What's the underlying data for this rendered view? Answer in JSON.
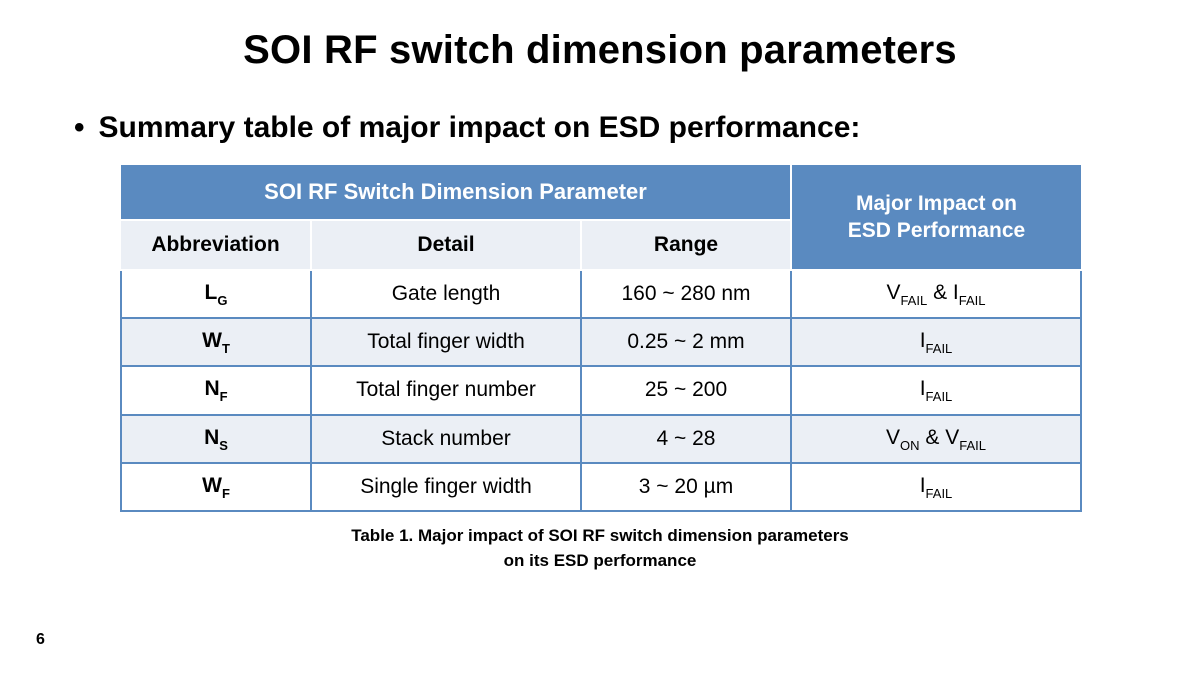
{
  "title": "SOI RF switch dimension parameters",
  "bullet_text": "Summary table of major impact on ESD performance:",
  "page_number": "6",
  "table": {
    "header_group_left": "SOI RF Switch Dimension Parameter",
    "header_group_right_l1": "Major Impact on",
    "header_group_right_l2": "ESD Performance",
    "subheaders": {
      "abbreviation": "Abbreviation",
      "detail": "Detail",
      "range": "Range"
    },
    "rows": [
      {
        "abbrev_base": "L",
        "abbrev_sub": "G",
        "detail": "Gate length",
        "range": "160 ~ 280 nm",
        "impact_parts": [
          {
            "base": "V",
            "sub": "FAIL"
          },
          {
            "sep": " & "
          },
          {
            "base": "I",
            "sub": "FAIL"
          }
        ]
      },
      {
        "abbrev_base": "W",
        "abbrev_sub": "T",
        "detail": "Total finger width",
        "range": "0.25 ~ 2 mm",
        "impact_parts": [
          {
            "base": "I",
            "sub": "FAIL"
          }
        ]
      },
      {
        "abbrev_base": "N",
        "abbrev_sub": "F",
        "detail": "Total finger number",
        "range": "25 ~ 200",
        "impact_parts": [
          {
            "base": "I",
            "sub": "FAIL"
          }
        ]
      },
      {
        "abbrev_base": "N",
        "abbrev_sub": "S",
        "detail": "Stack number",
        "range": "4 ~ 28",
        "impact_parts": [
          {
            "base": "V",
            "sub": "ON"
          },
          {
            "sep": " & "
          },
          {
            "base": "V",
            "sub": "FAIL"
          }
        ]
      },
      {
        "abbrev_base": "W",
        "abbrev_sub": "F",
        "detail": "Single finger width",
        "range": "3 ~ 20 µm",
        "impact_parts": [
          {
            "base": "I",
            "sub": "FAIL"
          }
        ]
      }
    ],
    "colors": {
      "header_bg": "#5a8ac0",
      "header_text": "#ffffff",
      "sub_bg": "#ebeff5",
      "border": "#5a8ac0",
      "row_even_bg": "#ffffff",
      "row_odd_bg": "#ebeff5"
    }
  },
  "caption_l1": "Table 1.   Major impact of SOI RF switch dimension parameters",
  "caption_l2": "on its ESD performance"
}
